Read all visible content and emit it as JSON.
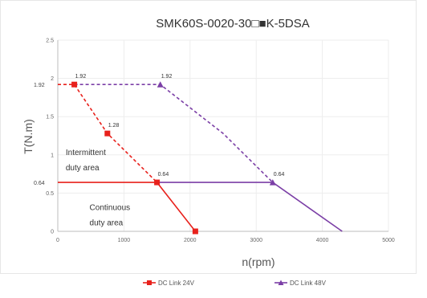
{
  "chart_data": {
    "type": "line",
    "title": "SMK60S-0020-30□■K-5DSA",
    "xlabel": "n(rpm)",
    "ylabel": "T(N.m)",
    "xlim": [
      0,
      5000
    ],
    "ylim": [
      0,
      2.5
    ],
    "x_ticks": [
      0,
      1000,
      2000,
      3000,
      4000,
      5000
    ],
    "y_ticks": [
      0,
      0.5,
      1,
      1.5,
      2,
      2.5
    ],
    "y_ticks_extra": [
      0.64,
      1.92
    ],
    "grid": true,
    "legend_position": "bottom",
    "colors": {
      "dc24": "#e8211c",
      "dc48": "#7b3fa6"
    },
    "series": [
      {
        "name": "DC Link 24V",
        "marker": "square",
        "continuous": {
          "x": [
            0,
            1500,
            1500,
            2080
          ],
          "y": [
            0.64,
            0.64,
            0.64,
            0
          ]
        },
        "intermittent": {
          "x": [
            0,
            250,
            750,
            1500
          ],
          "y": [
            1.92,
            1.92,
            1.28,
            0.64
          ]
        },
        "marker_points": [
          {
            "x": 250,
            "y": 1.92
          },
          {
            "x": 750,
            "y": 1.28
          },
          {
            "x": 1500,
            "y": 0.64
          },
          {
            "x": 2080,
            "y": 0
          }
        ]
      },
      {
        "name": "DC Link 48V",
        "marker": "triangle",
        "continuous": {
          "x": [
            1500,
            3250,
            3250,
            4300
          ],
          "y": [
            0.64,
            0.64,
            0.64,
            0
          ]
        },
        "intermittent": {
          "x": [
            250,
            1550,
            2500,
            3250
          ],
          "y": [
            1.92,
            1.92,
            1.28,
            0.64
          ]
        },
        "marker_points": [
          {
            "x": 1550,
            "y": 1.92
          },
          {
            "x": 3250,
            "y": 0.64
          }
        ]
      }
    ],
    "data_labels": [
      {
        "x": 250,
        "y": 1.92,
        "text": "1.92"
      },
      {
        "x": 1550,
        "y": 1.92,
        "text": "1.92"
      },
      {
        "x": 750,
        "y": 1.28,
        "text": "1.28"
      },
      {
        "x": 1500,
        "y": 0.64,
        "text": "0.64"
      },
      {
        "x": 3250,
        "y": 0.64,
        "text": "0.64"
      }
    ],
    "annotations": [
      {
        "text": "Intermittent",
        "x": 120,
        "y": 1.0
      },
      {
        "text": "duty area",
        "x": 120,
        "y": 0.8
      },
      {
        "text": "Continuous",
        "x": 480,
        "y": 0.28
      },
      {
        "text": "duty area",
        "x": 480,
        "y": 0.08
      }
    ]
  }
}
